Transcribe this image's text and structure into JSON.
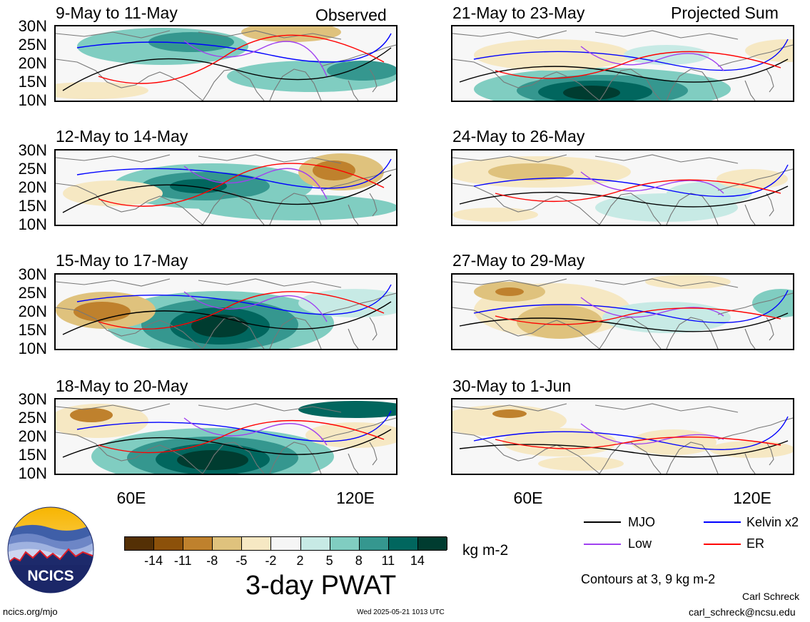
{
  "headers": {
    "left": "Observed",
    "right": "Projected Sum"
  },
  "panels": [
    {
      "period": "9-May to 11-May",
      "anomaly": "moist-north"
    },
    {
      "period": "12-May to 14-May",
      "anomaly": "moist-center"
    },
    {
      "period": "15-May to 17-May",
      "anomaly": "moist-strong"
    },
    {
      "period": "18-May to 20-May",
      "anomaly": "moist-strong-south"
    },
    {
      "period": "21-May to 23-May",
      "anomaly": "moist-south"
    },
    {
      "period": "24-May to 26-May",
      "anomaly": "mixed"
    },
    {
      "period": "27-May to 29-May",
      "anomaly": "dry"
    },
    {
      "period": "30-May to 1-Jun",
      "anomaly": "dry-weak"
    }
  ],
  "lat_labels": [
    "30N",
    "25N",
    "20N",
    "15N",
    "10N"
  ],
  "lon_labels": [
    "60E",
    "120E"
  ],
  "colorbar": {
    "colors": [
      "#543005",
      "#8c510a",
      "#bf812d",
      "#dfc27d",
      "#f6e8c3",
      "#f5f5f5",
      "#c7eae5",
      "#80cdc1",
      "#35978f",
      "#01665e",
      "#003c30"
    ],
    "ticks": [
      "-14",
      "-11",
      "-8",
      "-5",
      "-2",
      "2",
      "5",
      "8",
      "11",
      "14"
    ],
    "units": "kg m-2",
    "title": "3-day PWAT"
  },
  "legend": [
    {
      "label": "MJO",
      "color": "#000000"
    },
    {
      "label": "Kelvin x2",
      "color": "#0000ff"
    },
    {
      "label": "Low",
      "color": "#a040f0"
    },
    {
      "label": "ER",
      "color": "#ff0000"
    }
  ],
  "contours_note": "Contours at 3, 9 kg m-2",
  "logo_text": "NCICS",
  "footer": {
    "url": "ncics.org/mjo",
    "timestamp": "Wed 2025-05-21 1013 UTC",
    "author": "Carl Schreck",
    "email": "carl_schreck@ncsu.edu"
  }
}
